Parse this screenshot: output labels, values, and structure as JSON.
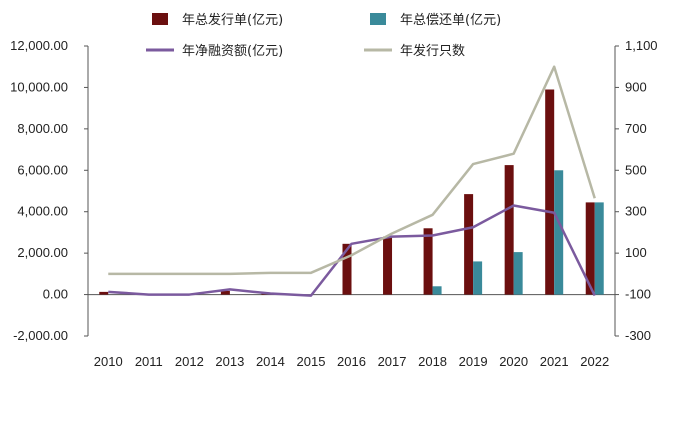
{
  "chart_data": {
    "type": "bar+line",
    "title": "",
    "categories": [
      "2010",
      "2011",
      "2012",
      "2013",
      "2014",
      "2015",
      "2016",
      "2017",
      "2018",
      "2019",
      "2020",
      "2021",
      "2022"
    ],
    "series": [
      {
        "name": "年总发行单(亿元)",
        "type": "bar",
        "axis": "left",
        "color": "#6b0f0f",
        "values": [
          130,
          0,
          0,
          180,
          50,
          0,
          2450,
          2800,
          3200,
          4850,
          6250,
          9900,
          4450
        ]
      },
      {
        "name": "年总偿还单(亿元)",
        "type": "bar",
        "axis": "left",
        "color": "#3a8a9a",
        "values": [
          0,
          0,
          0,
          0,
          0,
          0,
          0,
          0,
          400,
          1600,
          2050,
          6000,
          4450
        ]
      },
      {
        "name": "年净融资额(亿元)",
        "type": "line",
        "axis": "left",
        "color": "#7b5a9e",
        "values": [
          130,
          0,
          0,
          250,
          50,
          -50,
          2450,
          2800,
          2850,
          3250,
          4300,
          3950,
          -50
        ]
      },
      {
        "name": "年发行只数",
        "type": "line",
        "axis": "right",
        "color": "#b7b8a5",
        "values": [
          0,
          0,
          0,
          0,
          5,
          5,
          90,
          195,
          285,
          530,
          580,
          1000,
          365
        ]
      }
    ],
    "y_left": {
      "min": -2000,
      "max": 12000,
      "ticks": [
        "-2,000.00",
        "0.00",
        "2,000.00",
        "4,000.00",
        "6,000.00",
        "8,000.00",
        "10,000.00",
        "12,000.00"
      ]
    },
    "y_right": {
      "min": -300,
      "max": 1100,
      "ticks": [
        "-300",
        "-100",
        "100",
        "300",
        "500",
        "700",
        "900",
        "1,100"
      ]
    },
    "grid": false,
    "legend_position": "top"
  }
}
